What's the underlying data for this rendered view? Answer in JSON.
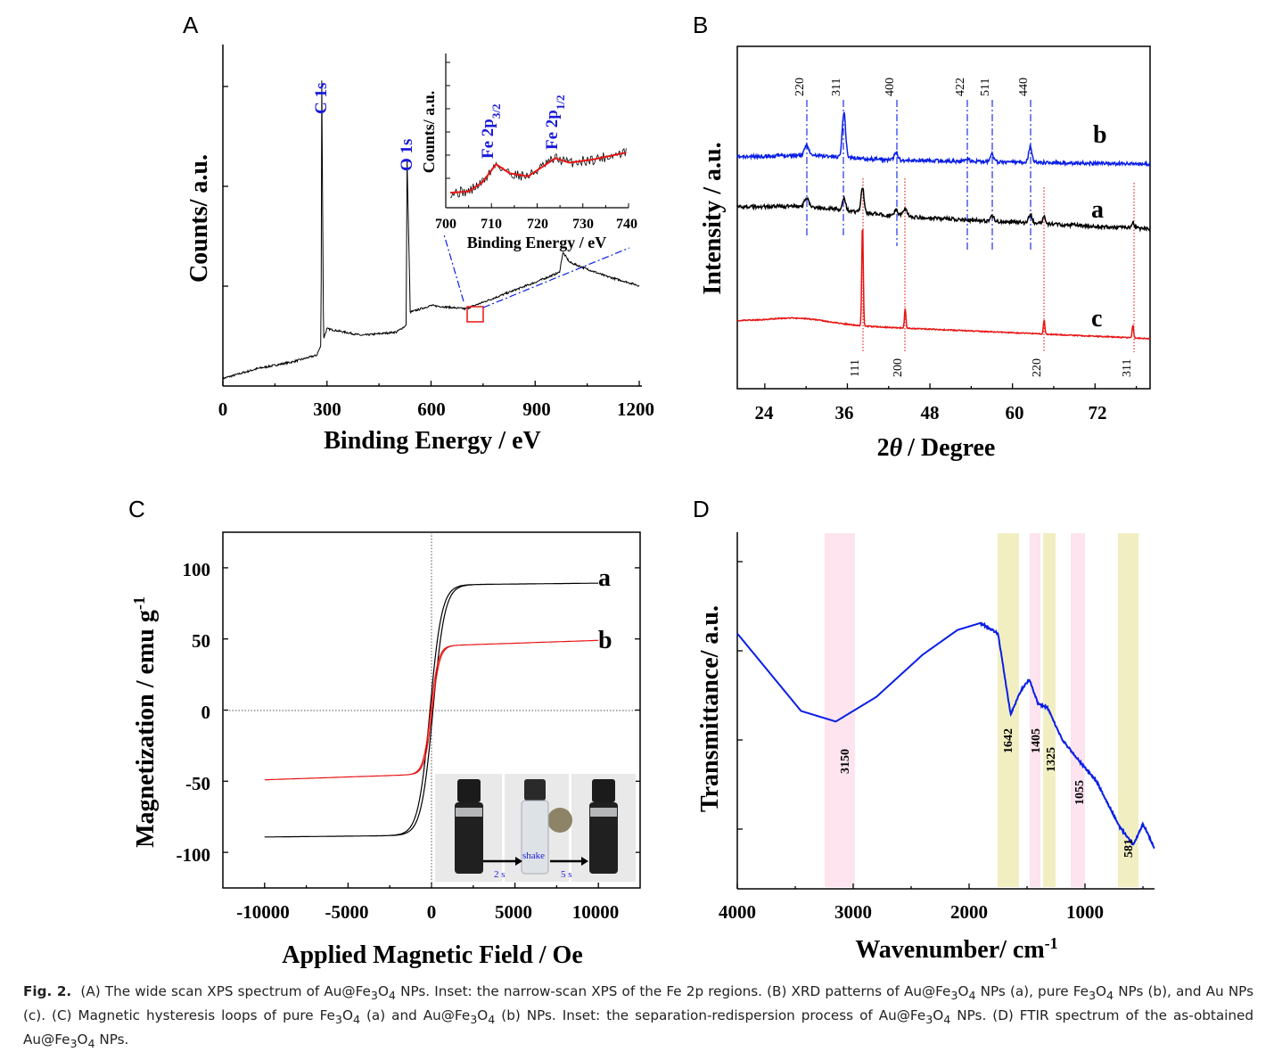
{
  "panels": {
    "A": {
      "letter": "A",
      "xlabel": "Binding Energy / eV",
      "ylabel": "Counts/ a.u.",
      "xticks": [
        "0",
        "300",
        "600",
        "900",
        "1200"
      ],
      "peaks": [
        "C 1s",
        "O 1s"
      ],
      "inset": {
        "xlabel": "Binding Energy / eV",
        "ylabel": "Counts/ a.u.",
        "xticks": [
          "700",
          "710",
          "720",
          "730",
          "740"
        ],
        "peak1_main": "Fe 2p",
        "peak1_sub": "3/2",
        "peak2_main": "Fe 2p",
        "peak2_sub": "1/2"
      }
    },
    "B": {
      "letter": "B",
      "xlabel_prefix": "2",
      "xlabel_theta": "θ",
      "xlabel_suffix": "/ Degree",
      "ylabel": "Intensity / a.u.",
      "xticks": [
        "24",
        "36",
        "48",
        "60",
        "72"
      ],
      "planes_top": [
        "220",
        "311",
        "400",
        "422",
        "511",
        "440"
      ],
      "planes_bottom": [
        "111",
        "200",
        "220",
        "311"
      ],
      "curve_labels": [
        "b",
        "a",
        "c"
      ]
    },
    "C": {
      "letter": "C",
      "xlabel": "Applied Magnetic Field / Oe",
      "ylabel_main": "Magnetization / emu g",
      "ylabel_sup": "-1",
      "xticks": [
        "-10000",
        "-5000",
        "0",
        "5000",
        "10000"
      ],
      "yticks": [
        "100",
        "50",
        "0",
        "-50",
        "-100"
      ],
      "curve_labels": [
        "a",
        "b"
      ],
      "inset_labels": [
        "2 s",
        "shake",
        "5 s"
      ]
    },
    "D": {
      "letter": "D",
      "xlabel_main": "Wavenumber/ cm",
      "xlabel_sup": "-1",
      "ylabel": "Transmittance/ a.u.",
      "xticks": [
        "4000",
        "3000",
        "2000",
        "1000"
      ],
      "bands": [
        "3150",
        "1642",
        "1405",
        "1325",
        "1055",
        "581"
      ]
    }
  },
  "chart_data": [
    {
      "type": "line",
      "panel": "A",
      "xlabel": "Binding Energy / eV",
      "ylabel": "Counts/ a.u.",
      "xlim": [
        0,
        1200
      ],
      "series": [
        {
          "x": [
            0,
            100,
            200,
            270,
            283,
            285,
            290,
            300,
            400,
            500,
            528,
            531,
            540,
            600,
            700,
            800,
            900,
            970,
            980,
            1000,
            1100,
            1200
          ],
          "y": [
            0.02,
            0.05,
            0.07,
            0.09,
            0.12,
            0.92,
            0.14,
            0.17,
            0.15,
            0.16,
            0.18,
            0.68,
            0.22,
            0.24,
            0.23,
            0.27,
            0.31,
            0.34,
            0.4,
            0.37,
            0.33,
            0.3
          ]
        }
      ],
      "annotations": [
        "C 1s",
        "O 1s"
      ]
    },
    {
      "type": "line",
      "panel": "A-inset",
      "xlabel": "Binding Energy / eV",
      "ylabel": "Counts/ a.u.",
      "xlim": [
        700,
        740
      ],
      "series": [
        {
          "x": [
            700,
            705,
            708,
            711,
            714,
            718,
            721,
            724,
            727,
            732,
            740
          ],
          "y": [
            0.05,
            0.06,
            0.12,
            0.24,
            0.18,
            0.16,
            0.22,
            0.28,
            0.25,
            0.27,
            0.32
          ]
        }
      ],
      "annotations": [
        "Fe 2p3/2",
        "Fe 2p1/2"
      ]
    },
    {
      "type": "line",
      "panel": "B",
      "xlabel": "2θ / Degree",
      "ylabel": "Intensity / a.u.",
      "xlim": [
        20,
        80
      ],
      "series": [
        {
          "name": "b",
          "peaks_2theta": [
            30.1,
            35.5,
            43.1,
            53.4,
            57.0,
            62.6
          ]
        },
        {
          "name": "a",
          "peaks_2theta": [
            30.1,
            35.5,
            38.2,
            43.1,
            44.4,
            57.0,
            62.6,
            64.6,
            77.5
          ]
        },
        {
          "name": "c",
          "peaks_2theta": [
            38.2,
            44.4,
            64.6,
            77.5
          ]
        }
      ],
      "annotations": [
        "220",
        "311",
        "400",
        "422",
        "511",
        "440",
        "111",
        "200",
        "220",
        "311"
      ]
    },
    {
      "type": "line",
      "panel": "C",
      "xlabel": "Applied Magnetic Field / Oe",
      "ylabel": "Magnetization / emu g-1",
      "xlim": [
        -12500,
        12500
      ],
      "ylim": [
        -125,
        125
      ],
      "series": [
        {
          "name": "a",
          "x": [
            -10000,
            -4000,
            -1500,
            -500,
            0,
            500,
            1500,
            4000,
            10000
          ],
          "y": [
            -91,
            -90,
            -84,
            -60,
            0,
            60,
            84,
            88,
            90
          ]
        },
        {
          "name": "b",
          "x": [
            -10000,
            -4000,
            -1500,
            -500,
            0,
            500,
            1500,
            4000,
            10000
          ],
          "y": [
            -53,
            -50,
            -44,
            -35,
            0,
            35,
            44,
            49,
            51
          ]
        }
      ]
    },
    {
      "type": "line",
      "panel": "D",
      "xlabel": "Wavenumber/ cm-1",
      "ylabel": "Transmittance/ a.u.",
      "xlim": [
        4000,
        400
      ],
      "series": [
        {
          "x": [
            4000,
            3700,
            3450,
            3150,
            2800,
            2400,
            2100,
            1900,
            1750,
            1642,
            1550,
            1480,
            1405,
            1325,
            1200,
            1055,
            900,
            700,
            581,
            500,
            400
          ],
          "y": [
            0.72,
            0.6,
            0.5,
            0.47,
            0.54,
            0.66,
            0.73,
            0.75,
            0.72,
            0.49,
            0.56,
            0.59,
            0.52,
            0.51,
            0.42,
            0.36,
            0.3,
            0.17,
            0.12,
            0.18,
            0.11
          ]
        }
      ],
      "bands": [
        3150,
        1642,
        1405,
        1325,
        1055,
        581
      ],
      "band_colors": [
        "#fde4ee",
        "#f1efc2",
        "#fde4ee",
        "#f1efc2",
        "#fde4ee",
        "#f1efc2"
      ]
    }
  ],
  "caption_html": "<b>Fig. 2.</b>&nbsp; (A) The wide scan XPS spectrum of Au@Fe<sub>3</sub>O<sub>4</sub> NPs. Inset: the narrow-scan XPS of the Fe 2p regions. (B) XRD patterns of Au@Fe<sub>3</sub>O<sub>4</sub> NPs (a), pure Fe<sub>3</sub>O<sub>4</sub> NPs (b), and Au NPs (c). (C) Magnetic hysteresis loops of pure Fe<sub>3</sub>O<sub>4</sub> (a) and Au@Fe<sub>3</sub>O<sub>4</sub> (b) NPs. Inset: the separation-redispersion process of Au@Fe<sub>3</sub>O<sub>4</sub> NPs. (D) FTIR spectrum of the as-obtained Au@Fe<sub>3</sub>O<sub>4</sub> NPs.",
  "colors": {
    "blue": "#0a1ee6",
    "red": "#e81414",
    "black": "#000000",
    "pink_band": "#fde4ee",
    "yellow_band": "#f1efc2"
  }
}
